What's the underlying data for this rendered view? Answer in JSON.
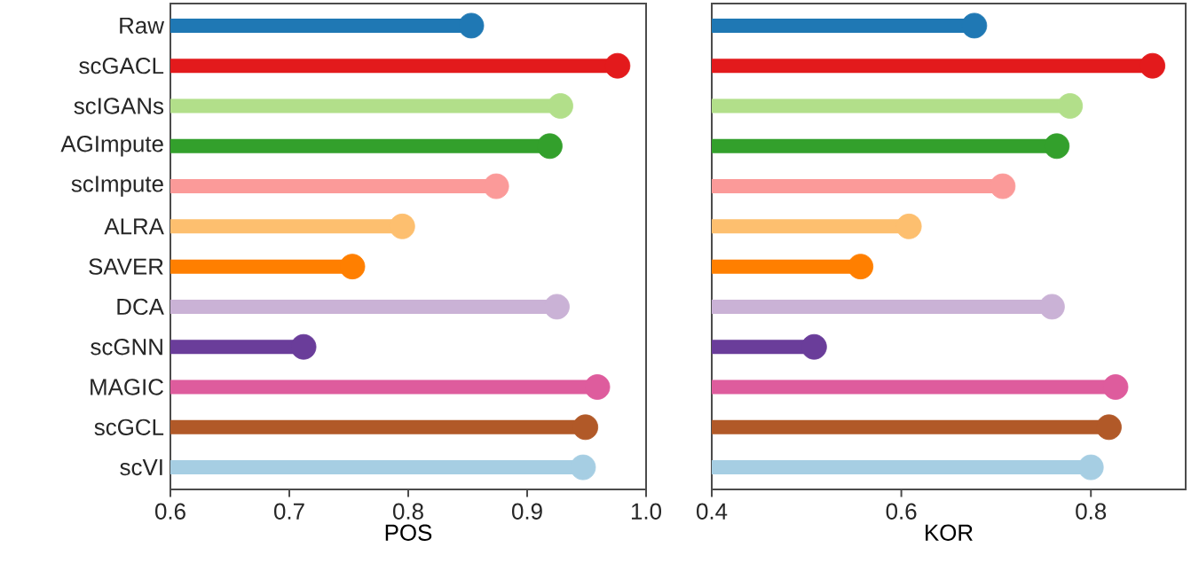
{
  "chart_data": [
    {
      "type": "lollipop",
      "orientation": "horizontal",
      "marker": "circle",
      "xlabel": "POS",
      "categories": [
        "Raw",
        "scGACL",
        "scIGANs",
        "AGImpute",
        "scImpute",
        "ALRA",
        "SAVER",
        "DCA",
        "scGNN",
        "MAGIC",
        "scGCL",
        "scVI"
      ],
      "values": [
        0.853,
        0.976,
        0.928,
        0.919,
        0.874,
        0.795,
        0.753,
        0.925,
        0.712,
        0.959,
        0.949,
        0.947
      ],
      "colors": [
        "#1f78b4",
        "#e31a1c",
        "#b2df8a",
        "#33a02c",
        "#fb9a99",
        "#fdbf6f",
        "#ff7f00",
        "#cab2d6",
        "#6a3d9a",
        "#de5c9d",
        "#b15928",
        "#a6cee3"
      ],
      "xlim": [
        0.6,
        1.0
      ],
      "xticks": [
        0.6,
        0.7,
        0.8,
        0.9,
        {
          "value": 1.0,
          "label": "1.0"
        }
      ]
    },
    {
      "type": "lollipop",
      "orientation": "horizontal",
      "marker": "circle",
      "xlabel": "KOR",
      "tick_labels": "x",
      "categories": [
        null,
        null,
        null,
        null,
        null,
        null,
        null,
        null,
        null,
        null,
        null,
        null
      ],
      "values": [
        0.677,
        0.865,
        0.778,
        0.764,
        0.707,
        0.608,
        0.557,
        0.759,
        0.508,
        0.826,
        0.819,
        0.8
      ],
      "colors": [
        "#1f78b4",
        "#e31a1c",
        "#b2df8a",
        "#33a02c",
        "#fb9a99",
        "#fdbf6f",
        "#ff7f00",
        "#cab2d6",
        "#6a3d9a",
        "#de5c9d",
        "#b15928",
        "#a6cee3"
      ],
      "xlim": [
        0.4,
        0.9
      ],
      "xticks": [
        0.4,
        0.6,
        0.8
      ]
    }
  ]
}
